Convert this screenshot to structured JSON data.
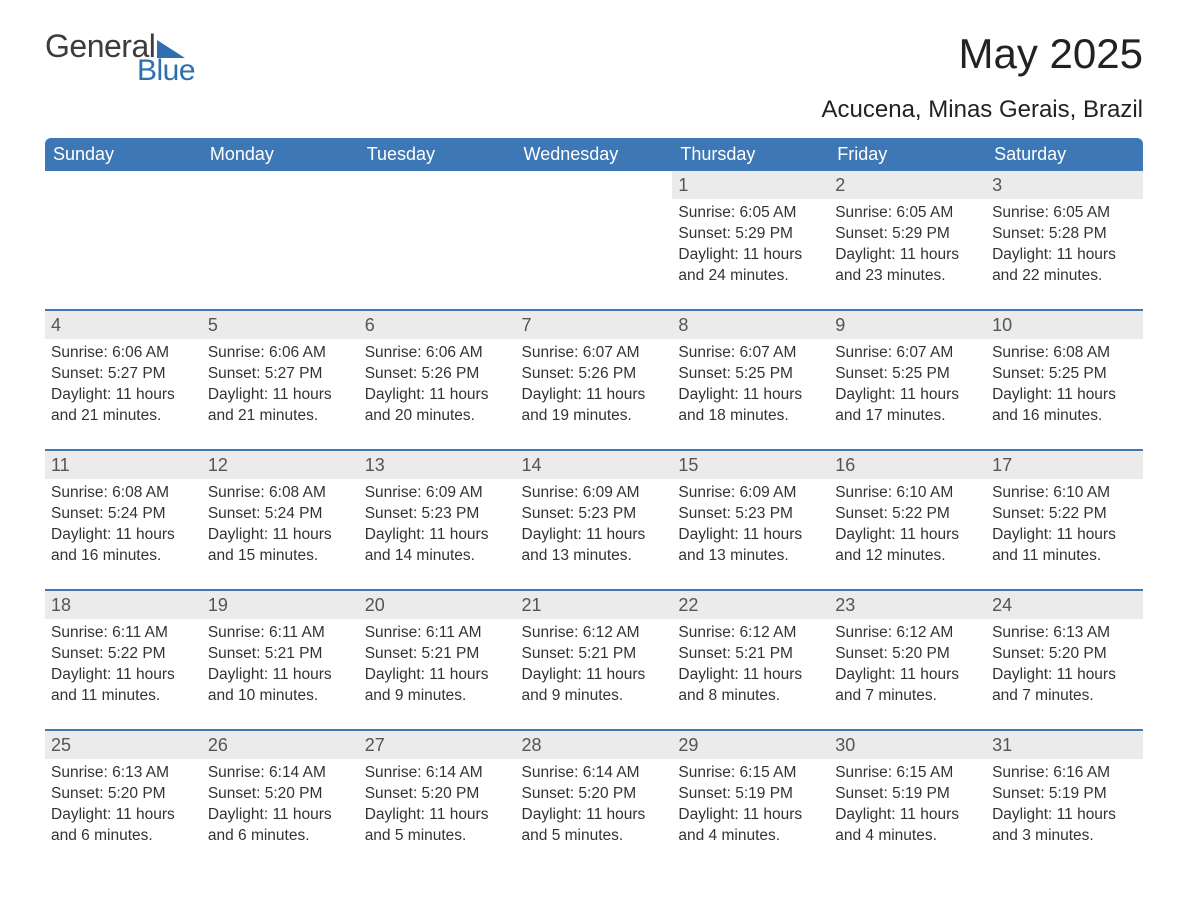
{
  "branding": {
    "word1": "General",
    "word2": "Blue",
    "accent_color": "#2f6fae",
    "text_color": "#3c3c3c"
  },
  "header": {
    "month_title": "May 2025",
    "location": "Acucena, Minas Gerais, Brazil"
  },
  "styling": {
    "header_bg": "#3d77b6",
    "header_text": "#ffffff",
    "daynum_bg": "#ebebeb",
    "row_divider": "#3d77b6",
    "body_text": "#333333",
    "page_bg": "#ffffff",
    "font_family": "Arial",
    "month_title_fontsize": 42,
    "location_fontsize": 24,
    "weekday_fontsize": 18,
    "cell_fontsize": 15.5
  },
  "weekdays": [
    "Sunday",
    "Monday",
    "Tuesday",
    "Wednesday",
    "Thursday",
    "Friday",
    "Saturday"
  ],
  "weeks": [
    [
      {
        "empty": true
      },
      {
        "empty": true
      },
      {
        "empty": true
      },
      {
        "empty": true
      },
      {
        "day": "1",
        "sunrise": "Sunrise: 6:05 AM",
        "sunset": "Sunset: 5:29 PM",
        "daylight": "Daylight: 11 hours and 24 minutes."
      },
      {
        "day": "2",
        "sunrise": "Sunrise: 6:05 AM",
        "sunset": "Sunset: 5:29 PM",
        "daylight": "Daylight: 11 hours and 23 minutes."
      },
      {
        "day": "3",
        "sunrise": "Sunrise: 6:05 AM",
        "sunset": "Sunset: 5:28 PM",
        "daylight": "Daylight: 11 hours and 22 minutes."
      }
    ],
    [
      {
        "day": "4",
        "sunrise": "Sunrise: 6:06 AM",
        "sunset": "Sunset: 5:27 PM",
        "daylight": "Daylight: 11 hours and 21 minutes."
      },
      {
        "day": "5",
        "sunrise": "Sunrise: 6:06 AM",
        "sunset": "Sunset: 5:27 PM",
        "daylight": "Daylight: 11 hours and 21 minutes."
      },
      {
        "day": "6",
        "sunrise": "Sunrise: 6:06 AM",
        "sunset": "Sunset: 5:26 PM",
        "daylight": "Daylight: 11 hours and 20 minutes."
      },
      {
        "day": "7",
        "sunrise": "Sunrise: 6:07 AM",
        "sunset": "Sunset: 5:26 PM",
        "daylight": "Daylight: 11 hours and 19 minutes."
      },
      {
        "day": "8",
        "sunrise": "Sunrise: 6:07 AM",
        "sunset": "Sunset: 5:25 PM",
        "daylight": "Daylight: 11 hours and 18 minutes."
      },
      {
        "day": "9",
        "sunrise": "Sunrise: 6:07 AM",
        "sunset": "Sunset: 5:25 PM",
        "daylight": "Daylight: 11 hours and 17 minutes."
      },
      {
        "day": "10",
        "sunrise": "Sunrise: 6:08 AM",
        "sunset": "Sunset: 5:25 PM",
        "daylight": "Daylight: 11 hours and 16 minutes."
      }
    ],
    [
      {
        "day": "11",
        "sunrise": "Sunrise: 6:08 AM",
        "sunset": "Sunset: 5:24 PM",
        "daylight": "Daylight: 11 hours and 16 minutes."
      },
      {
        "day": "12",
        "sunrise": "Sunrise: 6:08 AM",
        "sunset": "Sunset: 5:24 PM",
        "daylight": "Daylight: 11 hours and 15 minutes."
      },
      {
        "day": "13",
        "sunrise": "Sunrise: 6:09 AM",
        "sunset": "Sunset: 5:23 PM",
        "daylight": "Daylight: 11 hours and 14 minutes."
      },
      {
        "day": "14",
        "sunrise": "Sunrise: 6:09 AM",
        "sunset": "Sunset: 5:23 PM",
        "daylight": "Daylight: 11 hours and 13 minutes."
      },
      {
        "day": "15",
        "sunrise": "Sunrise: 6:09 AM",
        "sunset": "Sunset: 5:23 PM",
        "daylight": "Daylight: 11 hours and 13 minutes."
      },
      {
        "day": "16",
        "sunrise": "Sunrise: 6:10 AM",
        "sunset": "Sunset: 5:22 PM",
        "daylight": "Daylight: 11 hours and 12 minutes."
      },
      {
        "day": "17",
        "sunrise": "Sunrise: 6:10 AM",
        "sunset": "Sunset: 5:22 PM",
        "daylight": "Daylight: 11 hours and 11 minutes."
      }
    ],
    [
      {
        "day": "18",
        "sunrise": "Sunrise: 6:11 AM",
        "sunset": "Sunset: 5:22 PM",
        "daylight": "Daylight: 11 hours and 11 minutes."
      },
      {
        "day": "19",
        "sunrise": "Sunrise: 6:11 AM",
        "sunset": "Sunset: 5:21 PM",
        "daylight": "Daylight: 11 hours and 10 minutes."
      },
      {
        "day": "20",
        "sunrise": "Sunrise: 6:11 AM",
        "sunset": "Sunset: 5:21 PM",
        "daylight": "Daylight: 11 hours and 9 minutes."
      },
      {
        "day": "21",
        "sunrise": "Sunrise: 6:12 AM",
        "sunset": "Sunset: 5:21 PM",
        "daylight": "Daylight: 11 hours and 9 minutes."
      },
      {
        "day": "22",
        "sunrise": "Sunrise: 6:12 AM",
        "sunset": "Sunset: 5:21 PM",
        "daylight": "Daylight: 11 hours and 8 minutes."
      },
      {
        "day": "23",
        "sunrise": "Sunrise: 6:12 AM",
        "sunset": "Sunset: 5:20 PM",
        "daylight": "Daylight: 11 hours and 7 minutes."
      },
      {
        "day": "24",
        "sunrise": "Sunrise: 6:13 AM",
        "sunset": "Sunset: 5:20 PM",
        "daylight": "Daylight: 11 hours and 7 minutes."
      }
    ],
    [
      {
        "day": "25",
        "sunrise": "Sunrise: 6:13 AM",
        "sunset": "Sunset: 5:20 PM",
        "daylight": "Daylight: 11 hours and 6 minutes."
      },
      {
        "day": "26",
        "sunrise": "Sunrise: 6:14 AM",
        "sunset": "Sunset: 5:20 PM",
        "daylight": "Daylight: 11 hours and 6 minutes."
      },
      {
        "day": "27",
        "sunrise": "Sunrise: 6:14 AM",
        "sunset": "Sunset: 5:20 PM",
        "daylight": "Daylight: 11 hours and 5 minutes."
      },
      {
        "day": "28",
        "sunrise": "Sunrise: 6:14 AM",
        "sunset": "Sunset: 5:20 PM",
        "daylight": "Daylight: 11 hours and 5 minutes."
      },
      {
        "day": "29",
        "sunrise": "Sunrise: 6:15 AM",
        "sunset": "Sunset: 5:19 PM",
        "daylight": "Daylight: 11 hours and 4 minutes."
      },
      {
        "day": "30",
        "sunrise": "Sunrise: 6:15 AM",
        "sunset": "Sunset: 5:19 PM",
        "daylight": "Daylight: 11 hours and 4 minutes."
      },
      {
        "day": "31",
        "sunrise": "Sunrise: 6:16 AM",
        "sunset": "Sunset: 5:19 PM",
        "daylight": "Daylight: 11 hours and 3 minutes."
      }
    ]
  ]
}
